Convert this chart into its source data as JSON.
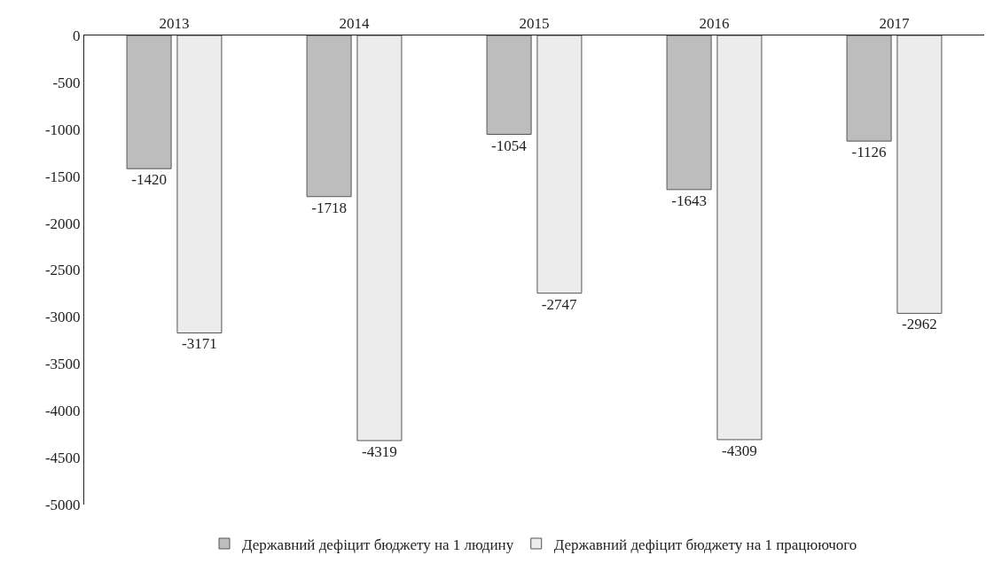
{
  "chart_data": {
    "type": "bar",
    "categories": [
      "2013",
      "2014",
      "2015",
      "2016",
      "2017"
    ],
    "series": [
      {
        "name": "Державний дефіцит бюджету на 1 людину",
        "color": "#bdbdbd",
        "values": [
          -1420,
          -1718,
          -1054,
          -1643,
          -1126
        ]
      },
      {
        "name": "Державний дефіцит бюджету на 1 працюючого",
        "color": "#ececec",
        "values": [
          -3171,
          -4319,
          -2747,
          -4309,
          -2962
        ]
      }
    ],
    "ylim": [
      -5000,
      0
    ],
    "yticks": [
      -5000,
      -4500,
      -4000,
      -3500,
      -3000,
      -2500,
      -2000,
      -1500,
      -1000,
      -500,
      0
    ],
    "data_labels": true,
    "legend": "bottom",
    "grid": false
  }
}
